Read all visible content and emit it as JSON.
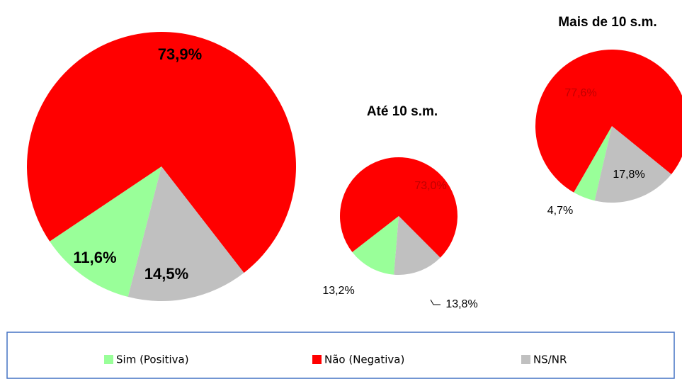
{
  "chart_data": [
    {
      "type": "pie",
      "categories": [
        "Sim (Positiva)",
        "Não (Negativa)",
        "NS/NR"
      ],
      "colors": [
        "#99ff99",
        "#ff0000",
        "#c0c0c0"
      ],
      "values": [
        11.6,
        73.9,
        14.5
      ],
      "value_labels": [
        "11,6%",
        "73,9%",
        "14,5%"
      ]
    },
    {
      "type": "pie",
      "title": "Até 10 s.m.",
      "categories": [
        "Sim (Positiva)",
        "Não (Negativa)",
        "NS/NR"
      ],
      "colors": [
        "#99ff99",
        "#ff0000",
        "#c0c0c0"
      ],
      "values": [
        13.2,
        73.0,
        13.8
      ],
      "value_labels": [
        "13,2%",
        "73,0%",
        "13,8%"
      ]
    },
    {
      "type": "pie",
      "title": "Mais de 10 s.m.",
      "categories": [
        "Sim (Positiva)",
        "Não (Negativa)",
        "NS/NR"
      ],
      "colors": [
        "#99ff99",
        "#ff0000",
        "#c0c0c0"
      ],
      "values": [
        4.7,
        77.6,
        17.8
      ],
      "value_labels": [
        "4,7%",
        "77,6%",
        "17,8%"
      ]
    }
  ]
}
